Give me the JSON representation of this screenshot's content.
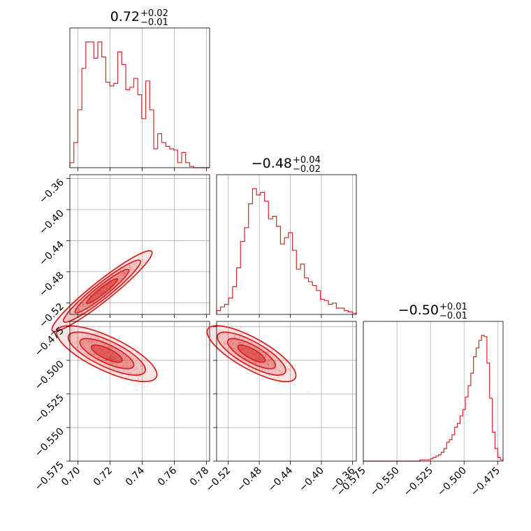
{
  "chart_data": {
    "type": "corner",
    "color": "#d62728",
    "grid": true,
    "parameters": [
      {
        "median": "0.72",
        "plus": "+0.02",
        "minus": "−0.01",
        "range": [
          0.695,
          0.782
        ],
        "ticks": [
          0.7,
          0.72,
          0.74,
          0.76,
          0.78
        ],
        "tick_labels": [
          "0.70",
          "0.72",
          "0.74",
          "0.76",
          "0.78"
        ]
      },
      {
        "median": "−0.48",
        "plus": "+0.04",
        "minus": "−0.02",
        "range": [
          -0.535,
          -0.355
        ],
        "ticks": [
          -0.52,
          -0.48,
          -0.44,
          -0.4,
          -0.36
        ],
        "tick_labels": [
          "−0.52",
          "−0.48",
          "−0.44",
          "−0.40",
          "−0.36"
        ]
      },
      {
        "median": "−0.50",
        "plus": "+0.01",
        "minus": "−0.01",
        "range": [
          -0.575,
          -0.471
        ],
        "ticks": [
          -0.575,
          -0.55,
          -0.525,
          -0.5,
          -0.475
        ],
        "tick_labels": [
          "−0.575",
          "−0.550",
          "−0.525",
          "−0.500",
          "−0.475"
        ]
      }
    ],
    "histograms": [
      [
        4,
        20,
        46,
        79,
        100,
        100,
        87,
        100,
        88,
        68,
        65,
        67,
        92,
        82,
        62,
        64,
        71,
        58,
        39,
        69,
        46,
        15,
        27,
        20,
        17,
        15,
        14,
        4,
        12,
        4,
        1,
        0,
        0,
        0,
        0
      ],
      [
        3,
        6,
        8,
        13,
        22,
        37,
        58,
        69,
        88,
        100,
        95,
        97,
        90,
        76,
        78,
        70,
        56,
        61,
        65,
        51,
        36,
        40,
        29,
        26,
        23,
        19,
        12,
        11,
        8,
        9,
        5,
        5,
        3,
        2,
        1
      ],
      [
        0,
        0,
        0,
        0,
        0,
        0,
        0,
        0,
        0,
        0,
        0,
        0,
        0,
        0,
        0,
        0,
        0,
        0,
        0,
        0,
        0,
        1,
        1,
        1,
        1,
        2,
        3,
        4,
        5,
        7,
        10,
        15,
        17,
        21,
        27,
        30,
        36,
        41,
        51,
        60,
        70,
        83,
        90,
        96,
        100,
        99,
        78,
        50,
        23,
        10,
        3,
        1
      ]
    ],
    "contour_levels": 4
  }
}
